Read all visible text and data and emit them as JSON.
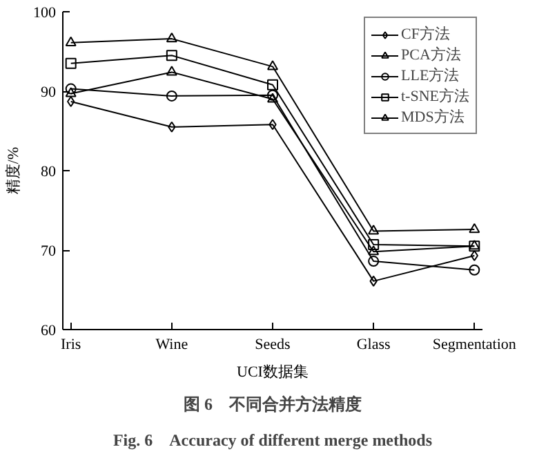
{
  "chart_data": {
    "type": "line",
    "xlabel": "UCI数据集",
    "ylabel": "精度/%",
    "categories": [
      "Iris",
      "Wine",
      "Seeds",
      "Glass",
      "Segmentation"
    ],
    "ylim": [
      60,
      100
    ],
    "yticks": [
      60,
      70,
      80,
      90,
      100
    ],
    "grid": false,
    "legend": "top right",
    "line_style": "solid",
    "series": [
      {
        "name": "CF方法",
        "color": "#000000",
        "marker": "diamond",
        "values": [
          88.7,
          85.5,
          85.8,
          66.1,
          69.3
        ]
      },
      {
        "name": "PCA方法",
        "color": "#000000",
        "marker": "triangle",
        "values": [
          96.1,
          96.6,
          93.1,
          72.4,
          72.6
        ]
      },
      {
        "name": "LLE方法",
        "color": "#000000",
        "marker": "circle",
        "values": [
          90.3,
          89.4,
          89.5,
          68.6,
          67.5
        ]
      },
      {
        "name": "t-SNE方法",
        "color": "#000000",
        "marker": "square",
        "values": [
          93.5,
          94.5,
          90.8,
          70.7,
          70.5
        ]
      },
      {
        "name": "MDS方法",
        "color": "#000000",
        "marker": "triangle",
        "values": [
          89.7,
          92.4,
          89.0,
          69.8,
          70.5
        ]
      }
    ],
    "annotations": [
      "图 6　不同合并方法精度",
      "Fig. 6　Accuracy of different merge methods"
    ]
  }
}
